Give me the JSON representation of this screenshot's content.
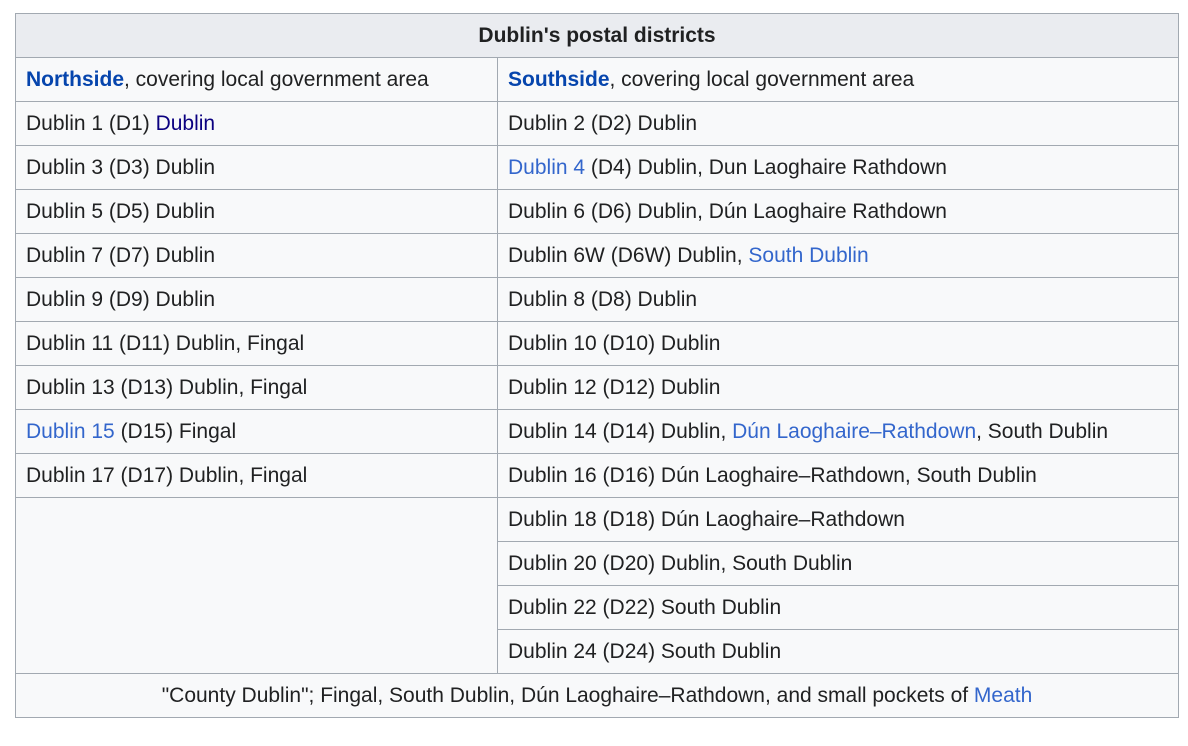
{
  "title": "Dublin's postal districts",
  "header": {
    "north": {
      "link": "Northside",
      "rest": ", covering local government area"
    },
    "south": {
      "link": "Southside",
      "rest": ", covering local government area"
    }
  },
  "rows": [
    {
      "n_pre": "Dublin 1 (D1) ",
      "n_link": "Dublin",
      "n_post": "",
      "s_link": "",
      "s_text": "Dublin 2 (D2) Dublin",
      "s_link2": "",
      "s_post": ""
    },
    {
      "n_pre": "Dublin 3 (D3) Dublin",
      "n_link": "",
      "n_post": "",
      "s_link": "Dublin 4",
      "s_text": " (D4) Dublin, Dun Laoghaire Rathdown",
      "s_link2": "",
      "s_post": ""
    },
    {
      "n_pre": "Dublin 5 (D5) Dublin",
      "n_link": "",
      "n_post": "",
      "s_link": "",
      "s_text": "Dublin 6 (D6) Dublin, Dún Laoghaire Rathdown",
      "s_link2": "",
      "s_post": ""
    },
    {
      "n_pre": "Dublin 7 (D7) Dublin",
      "n_link": "",
      "n_post": "",
      "s_link": "",
      "s_text": "Dublin 6W (D6W) Dublin, ",
      "s_link2": "South Dublin",
      "s_post": ""
    },
    {
      "n_pre": "Dublin 9 (D9) Dublin",
      "n_link": "",
      "n_post": "",
      "s_link": "",
      "s_text": "Dublin 8 (D8) Dublin",
      "s_link2": "",
      "s_post": ""
    },
    {
      "n_pre": "Dublin 11 (D11) Dublin, Fingal",
      "n_link": "",
      "n_post": "",
      "s_link": "",
      "s_text": "Dublin 10 (D10) Dublin",
      "s_link2": "",
      "s_post": ""
    },
    {
      "n_pre": "Dublin 13 (D13) Dublin, Fingal",
      "n_link": "",
      "n_post": "",
      "s_link": "",
      "s_text": "Dublin 12 (D12) Dublin",
      "s_link2": "",
      "s_post": ""
    },
    {
      "n_pre": "",
      "n_link": "Dublin 15",
      "n_post": " (D15) Fingal",
      "s_link": "",
      "s_text": "Dublin 14 (D14) Dublin, ",
      "s_link2": "Dún Laoghaire–Rathdown",
      "s_post": ", South Dublin"
    },
    {
      "n_pre": "Dublin 17 (D17) Dublin, Fingal",
      "n_link": "",
      "n_post": "",
      "s_link": "",
      "s_text": "Dublin 16 (D16) Dún Laoghaire–Rathdown, South Dublin",
      "s_link2": "",
      "s_post": ""
    }
  ],
  "south_only_rows": [
    "Dublin 18 (D18) Dún Laoghaire–Rathdown",
    "Dublin 20 (D20) Dublin, South Dublin",
    "Dublin 22 (D22) South Dublin",
    "Dublin 24 (D24) South Dublin"
  ],
  "footer": {
    "text": "\"County Dublin\"; Fingal, South Dublin, Dún Laoghaire–Rathdown, and small pockets of ",
    "link": "Meath"
  },
  "colors": {
    "link": "#3366cc",
    "link_bold": "#0645ad",
    "link_dark": "#0b0080",
    "border": "#a2a9b1",
    "header_bg": "#eaecf0",
    "cell_bg": "#f8f9fa"
  }
}
